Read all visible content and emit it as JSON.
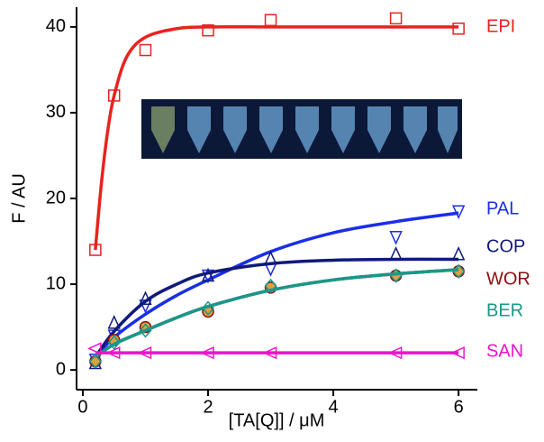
{
  "chart_data": {
    "type": "scatter",
    "xlabel": "[TA[Q]] / μM",
    "ylabel": "F / AU",
    "xlim": [
      -0.1,
      6.3
    ],
    "ylim": [
      -2.3,
      42.3
    ],
    "xticks": [
      0,
      2,
      4,
      6
    ],
    "yticks": [
      0,
      10,
      20,
      30,
      40
    ],
    "x": [
      0.2,
      0.5,
      1,
      2,
      3,
      5,
      6
    ],
    "series": [
      {
        "name": "EPI",
        "color": "#e8231f",
        "marker": "square",
        "values": [
          14,
          32,
          37.3,
          39.6,
          40.8,
          41,
          39.8
        ],
        "fit_x": [
          0.2,
          0.3,
          0.4,
          0.5,
          0.7,
          1,
          1.5,
          2,
          3,
          4,
          5,
          6
        ],
        "fit_values": [
          14,
          22,
          28,
          32,
          36.5,
          38.8,
          39.8,
          40,
          40,
          40,
          40,
          40
        ]
      },
      {
        "name": "PAL",
        "color": "#1a2ee8",
        "marker": "triangle-down",
        "values": [
          1.2,
          4,
          7.5,
          11,
          11.8,
          15.5,
          18.5
        ],
        "fit_x": [
          0.2,
          0.5,
          1,
          1.5,
          2,
          3,
          4,
          5,
          6
        ],
        "fit_values": [
          1.5,
          3.8,
          6.5,
          8.7,
          10.5,
          13.8,
          16,
          17.3,
          18.3
        ]
      },
      {
        "name": "COP",
        "color": "#101a7a",
        "marker": "triangle-up",
        "values": [
          0.8,
          5.5,
          8.3,
          11,
          13,
          13.5,
          13.5
        ],
        "fit_x": [
          0.2,
          0.5,
          1,
          1.5,
          2,
          3,
          4,
          5,
          6
        ],
        "fit_values": [
          1.5,
          4.5,
          8,
          10,
          11.3,
          12.4,
          12.8,
          12.9,
          12.9
        ]
      },
      {
        "name": "WOR",
        "color": "#8b1010",
        "marker": "circle",
        "values": [
          1,
          3.5,
          5,
          6.8,
          9.6,
          11,
          11.5
        ],
        "fit_x": [
          0.2,
          0.5,
          1,
          1.5,
          2,
          3,
          4,
          5,
          6
        ],
        "fit_values": [
          1.5,
          3,
          4.6,
          6.1,
          7.4,
          9.3,
          10.5,
          11.2,
          11.7
        ]
      },
      {
        "name": "BER",
        "color": "#17998a",
        "marker": "diamond",
        "values": [
          1,
          3.2,
          4.6,
          7.2,
          9.8,
          11,
          11.5
        ],
        "fit_x": [
          0.2,
          0.5,
          1,
          1.5,
          2,
          3,
          4,
          5,
          6
        ],
        "fit_values": [
          1.5,
          3,
          4.6,
          6.1,
          7.4,
          9.3,
          10.5,
          11.2,
          11.7
        ]
      },
      {
        "name": "SAN",
        "color": "#ec14c8",
        "marker": "triangle-left",
        "values": [
          2.5,
          2,
          2,
          2,
          2,
          2,
          2
        ],
        "fit_x": [
          0.2,
          6
        ],
        "fit_values": [
          2,
          2
        ]
      }
    ]
  }
}
